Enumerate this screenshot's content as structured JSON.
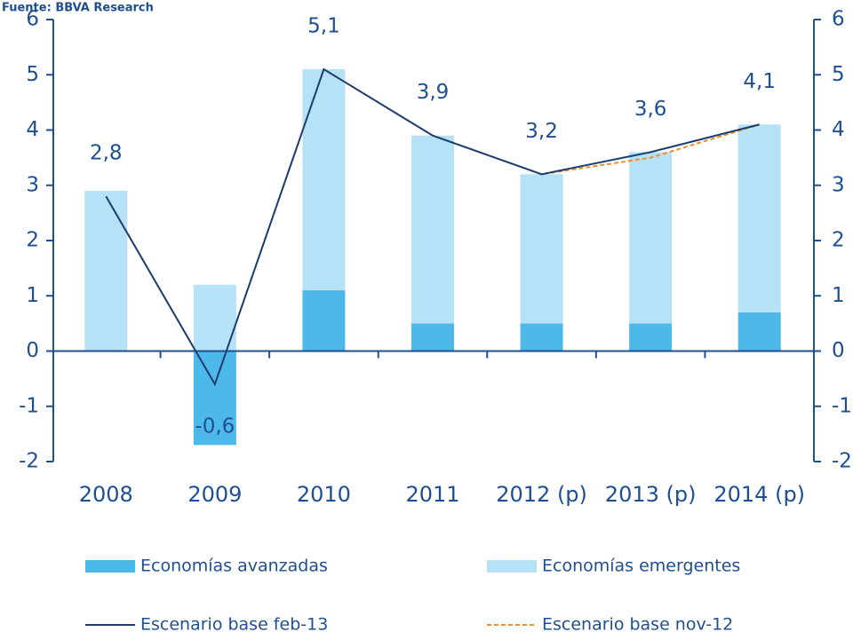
{
  "chart_data": {
    "type": "bar_line",
    "source": "Fuente: BBVA Research",
    "categories": [
      "2008",
      "2009",
      "2010",
      "2011",
      "2012 (p)",
      "2013 (p)",
      "2014 (p)"
    ],
    "series": [
      {
        "name": "Economías avanzadas",
        "kind": "bar",
        "color": "#4cb9ea",
        "values": [
          0,
          -1.7,
          1.1,
          0.5,
          0.5,
          0.5,
          0.7
        ]
      },
      {
        "name": "Economías emergentes",
        "kind": "bar",
        "color": "#b5e2f6",
        "values": [
          2.9,
          1.2,
          4.0,
          3.4,
          2.7,
          3.1,
          3.4
        ]
      },
      {
        "name": "Escenario base feb-13",
        "kind": "line",
        "color": "#1a3f73",
        "values": [
          2.8,
          -0.6,
          5.1,
          3.9,
          3.2,
          3.6,
          4.1
        ],
        "value_labels": [
          "2,8",
          "-0,6",
          "5,1",
          "3,9",
          "3,2",
          "3,6",
          "4,1"
        ]
      },
      {
        "name": "Escenario base nov-12",
        "kind": "line",
        "dashed": true,
        "color": "#f28c28",
        "values": [
          2.8,
          -0.6,
          5.1,
          3.9,
          3.2,
          3.5,
          4.1
        ]
      }
    ],
    "ylim": [
      -2,
      6
    ],
    "yticks": [
      -2,
      -1,
      0,
      1,
      2,
      3,
      4,
      5,
      6
    ],
    "y2lim": [
      -2,
      6
    ],
    "y2ticks": [
      -2,
      -1,
      0,
      1,
      2,
      3,
      4,
      5,
      6
    ]
  }
}
